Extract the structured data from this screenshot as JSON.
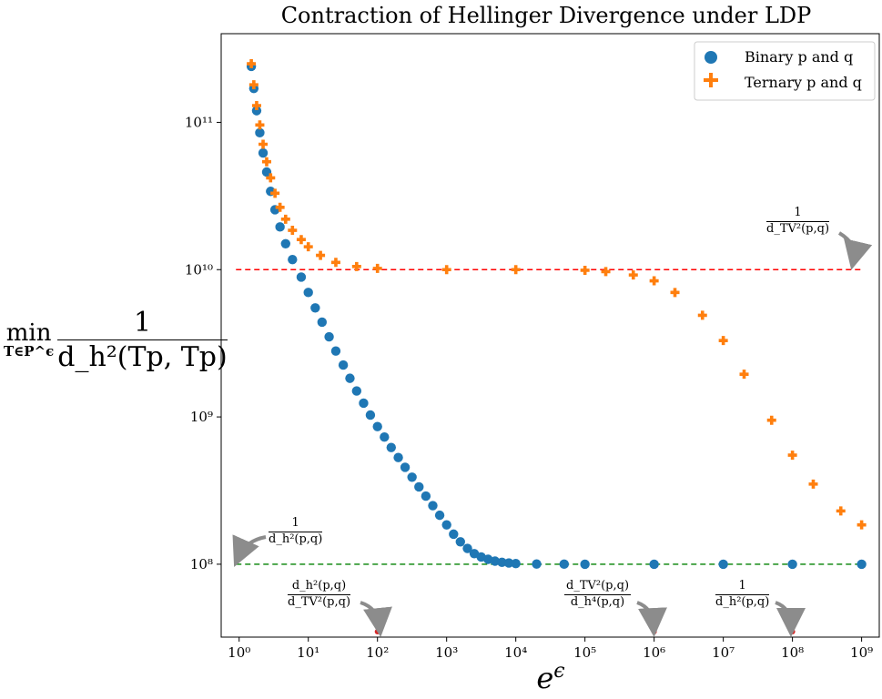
{
  "chart_data": {
    "type": "scatter",
    "title": "Contraction of Hellinger Divergence under LDP",
    "xlabel": "e^ϵ",
    "ylabel": {
      "operator": "min",
      "subscript": "T∈P^ϵ",
      "numerator": "1",
      "denominator": "d_h²(Tp, Tp)"
    },
    "xscale": "log",
    "yscale": "log",
    "xlim": [
      0.55,
      1800000000.0
    ],
    "ylim": [
      32000000.0,
      400000000000.0
    ],
    "x_ticks": [
      1,
      10,
      100,
      1000,
      10000,
      100000,
      1000000,
      10000000,
      100000000,
      1000000000
    ],
    "x_tick_labels": [
      "10⁰",
      "10¹",
      "10²",
      "10³",
      "10⁴",
      "10⁵",
      "10⁶",
      "10⁷",
      "10⁸",
      "10⁹"
    ],
    "y_ticks": [
      100000000,
      1000000000,
      10000000000,
      100000000000
    ],
    "y_tick_labels": [
      "10⁸",
      "10⁹",
      "10¹⁰",
      "10¹¹"
    ],
    "legend_position": "top-right",
    "series": [
      {
        "name": "Binary p and q",
        "marker": "circle",
        "color": "#1f77b4",
        "x": [
          1.5,
          1.63,
          1.79,
          1.99,
          2.22,
          2.5,
          2.85,
          3.3,
          3.9,
          4.7,
          5.9,
          7.9,
          10,
          12.6,
          15.8,
          20,
          25,
          32,
          40,
          50,
          63,
          79,
          100,
          126,
          158,
          200,
          251,
          316,
          398,
          501,
          631,
          794,
          1000,
          1260,
          1580,
          2000,
          2510,
          3160,
          3980,
          5010,
          6310,
          7940,
          10000,
          20000,
          50000,
          100000,
          1000000,
          10000000,
          100000000,
          1000000000
        ],
        "y": [
          240000000000.0,
          170000000000.0,
          120000000000.0,
          85000000000.0,
          62000000000.0,
          46000000000.0,
          34000000000.0,
          25500000000.0,
          19500000000.0,
          15000000000.0,
          11700000000.0,
          8900000000.0,
          7000000000.0,
          5500000000.0,
          4400000000.0,
          3500000000.0,
          2800000000.0,
          2250000000.0,
          1830000000.0,
          1500000000.0,
          1240000000.0,
          1030000000.0,
          860000000.0,
          730000000.0,
          620000000.0,
          530000000.0,
          455000000.0,
          390000000.0,
          335000000.0,
          290000000.0,
          250000000.0,
          215000000.0,
          185000000.0,
          160000000.0,
          142000000.0,
          128000000.0,
          118000000.0,
          112000000.0,
          108000000.0,
          105000000.0,
          103000000.0,
          102000000.0,
          101000000.0,
          100400000.0,
          100100000.0,
          100000000.0,
          100000000.0,
          100000000.0,
          100000000.0,
          100000000.0
        ]
      },
      {
        "name": "Ternary p and q",
        "marker": "plus",
        "color": "#ff7f0e",
        "x": [
          1.5,
          1.63,
          1.79,
          1.99,
          2.22,
          2.5,
          2.85,
          3.3,
          3.9,
          4.7,
          5.9,
          7.9,
          10,
          15,
          25,
          50,
          100,
          1000,
          10000,
          100000,
          200000,
          500000,
          1000000,
          2000000,
          5000000,
          10000000,
          20000000,
          50000000,
          100000000,
          200000000,
          500000000,
          1000000000
        ],
        "y": [
          250000000000.0,
          180000000000.0,
          130000000000.0,
          96000000000.0,
          71000000000.0,
          54000000000.0,
          42000000000.0,
          33000000000.0,
          26500000000.0,
          22000000000.0,
          18500000000.0,
          16000000000.0,
          14300000000.0,
          12500000000.0,
          11200000000.0,
          10500000000.0,
          10200000000.0,
          10000000000.0,
          10000000000.0,
          9900000000.0,
          9700000000.0,
          9200000000.0,
          8400000000.0,
          7000000000.0,
          4900000000.0,
          3300000000.0,
          1950000000.0,
          950000000.0,
          550000000.0,
          350000000.0,
          230000000.0,
          185000000.0
        ]
      }
    ],
    "reference_lines": [
      {
        "y": 10000000000,
        "color": "#ff0000",
        "style": "dashed"
      },
      {
        "y": 100000000,
        "color": "#008000",
        "style": "dashed"
      }
    ],
    "marked_points": [
      {
        "x": 100,
        "color": "#d62728"
      },
      {
        "x": 1000000,
        "color": "#d62728"
      },
      {
        "x": 100000000,
        "color": "#d62728"
      }
    ],
    "annotations": [
      {
        "id": "tv",
        "numerator": "1",
        "denominator": "d_TV²(p,q)"
      },
      {
        "id": "h",
        "numerator": "1",
        "denominator": "d_h²(p,q)"
      },
      {
        "id": "hm",
        "numerator": "d_h²(p,q)",
        "denominator": "d_TV²(p,q)"
      },
      {
        "id": "tvm",
        "numerator": "d_TV²(p,q)",
        "denominator": "d_h⁴(p,q)"
      },
      {
        "id": "h1m",
        "numerator": "1",
        "denominator": "d_h²(p,q)"
      }
    ]
  }
}
